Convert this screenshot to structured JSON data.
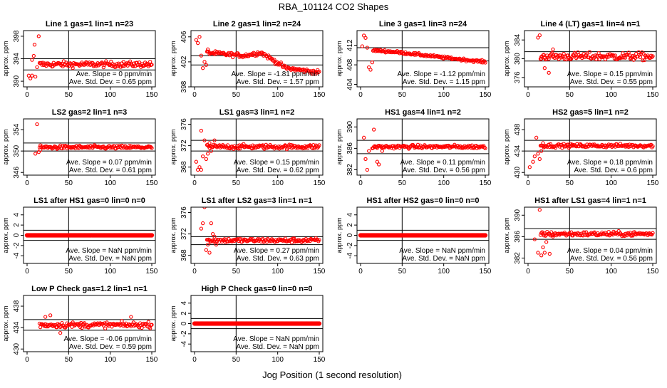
{
  "figure": {
    "title": "RBA_101124  CO2 Shapes",
    "xlabel": "Jog Position (1 second resolution)",
    "marker_color": "#ff0000"
  },
  "chart_data": [
    {
      "type": "scatter",
      "title": "Line 1 gas=1 lin=1 n=23",
      "ylabel": "approx. ppm",
      "xlim": [
        0,
        150
      ],
      "xticks": [
        0,
        50,
        100,
        150
      ],
      "ylim": [
        389,
        399
      ],
      "yticks": [
        390,
        394,
        398
      ],
      "hlines": [
        392,
        394
      ],
      "vline": 50,
      "mean": 393,
      "sd": 0.6,
      "outliers": [
        [
          2,
          391
        ],
        [
          4,
          390.5
        ],
        [
          6,
          393.8
        ],
        [
          8,
          394.5
        ],
        [
          10,
          390.8
        ],
        [
          12,
          392.5
        ],
        [
          14,
          398
        ],
        [
          6,
          391
        ],
        [
          9,
          396.5
        ]
      ],
      "slope_text": "Ave. Slope =  0  ppm/min",
      "sd_text": "Ave. Std. Dev. =  0.65  ppm"
    },
    {
      "type": "scatter",
      "title": "Line 2 gas=1 lin=2 n=24",
      "ylabel": "approx. ppm",
      "xlim": [
        0,
        150
      ],
      "xticks": [
        0,
        50,
        100,
        150
      ],
      "ylim": [
        398,
        407
      ],
      "yticks": [
        398,
        402,
        406
      ],
      "hlines": [
        403,
        401.5
      ],
      "vline": 50,
      "trend": [
        [
          12,
          403.5
        ],
        [
          60,
          403
        ],
        [
          80,
          403.5
        ],
        [
          110,
          401
        ],
        [
          150,
          400.3
        ]
      ],
      "sd": 0.4,
      "outliers": [
        [
          2,
          405.5
        ],
        [
          4,
          405
        ],
        [
          6,
          406
        ],
        [
          8,
          403
        ],
        [
          10,
          401
        ],
        [
          12,
          402
        ],
        [
          14,
          401.5
        ],
        [
          16,
          404
        ]
      ],
      "slope_text": "Ave. Slope =  -1.81  ppm/min",
      "sd_text": "Ave. Std. Dev. =  1.57  ppm"
    },
    {
      "type": "scatter",
      "title": "Line 3 gas=1 lin=3 n=24",
      "ylabel": "approx. ppm",
      "xlim": [
        0,
        150
      ],
      "xticks": [
        0,
        50,
        100,
        150
      ],
      "ylim": [
        403.5,
        415
      ],
      "yticks": [
        404,
        408,
        412
      ],
      "hlines": [
        411.5,
        408.8
      ],
      "vline": 50,
      "trend": [
        [
          15,
          411
        ],
        [
          50,
          410.5
        ],
        [
          100,
          409.5
        ],
        [
          150,
          408.6
        ]
      ],
      "sd": 0.3,
      "outliers": [
        [
          2,
          411.8
        ],
        [
          4,
          414
        ],
        [
          6,
          413.5
        ],
        [
          8,
          411.5
        ],
        [
          10,
          407.5
        ],
        [
          12,
          407
        ],
        [
          14,
          408.5
        ]
      ],
      "slope_text": "Ave. Slope =  -1.12  ppm/min",
      "sd_text": "Ave. Std. Dev. =  1.15  ppm"
    },
    {
      "type": "scatter",
      "title": "Line 4 (LT) gas=1 lin=4 n=1",
      "ylabel": "approx. ppm",
      "xlim": [
        0,
        150
      ],
      "xticks": [
        0,
        50,
        100,
        150
      ],
      "ylim": [
        374,
        386
      ],
      "yticks": [
        376,
        380,
        384
      ],
      "hlines": [
        381.5,
        379.5
      ],
      "vline": 50,
      "mean": 380.5,
      "sd": 1.0,
      "outliers": [
        [
          12,
          384.5
        ],
        [
          14,
          385
        ],
        [
          16,
          380
        ],
        [
          20,
          378
        ],
        [
          25,
          377
        ],
        [
          30,
          382
        ]
      ],
      "slope_text": "Ave. Slope =  0.15  ppm/min",
      "sd_text": "Ave. Std. Dev. =  0.55  ppm"
    },
    {
      "type": "scatter",
      "title": "LS2 gas=2 lin=1 n=3",
      "ylabel": "approx. ppm",
      "xlim": [
        0,
        150
      ],
      "xticks": [
        0,
        50,
        100,
        150
      ],
      "ylim": [
        345.5,
        356
      ],
      "yticks": [
        346,
        350,
        354
      ],
      "hlines": [
        351.5,
        350
      ],
      "vline": 50,
      "mean": 350.7,
      "sd": 0.4,
      "outliers": [
        [
          10,
          349.5
        ],
        [
          12,
          355
        ],
        [
          14,
          349.8
        ],
        [
          16,
          350.2
        ]
      ],
      "slope_text": "Ave. Slope =  0.07  ppm/min",
      "sd_text": "Ave. Std. Dev. =  0.61  ppm"
    },
    {
      "type": "scatter",
      "title": "LS1 gas=3 lin=1 n=2",
      "ylabel": "approx. ppm",
      "xlim": [
        0,
        150
      ],
      "xticks": [
        0,
        50,
        100,
        150
      ],
      "ylim": [
        366.5,
        377
      ],
      "yticks": [
        368,
        372,
        376
      ],
      "hlines": [
        373,
        371
      ],
      "vline": 50,
      "mean": 371.8,
      "sd": 0.5,
      "outliers": [
        [
          2,
          369
        ],
        [
          4,
          367.5
        ],
        [
          6,
          368
        ],
        [
          8,
          367.5
        ],
        [
          10,
          370
        ],
        [
          12,
          373
        ],
        [
          14,
          369.5
        ],
        [
          16,
          370.5
        ],
        [
          18,
          372.5
        ],
        [
          20,
          371
        ],
        [
          24,
          373
        ],
        [
          8,
          374.8
        ]
      ],
      "slope_text": "Ave. Slope =  0.15  ppm/min",
      "sd_text": "Ave. Std. Dev. =  0.62  ppm"
    },
    {
      "type": "scatter",
      "title": "HS1 gas=4 lin=1 n=2",
      "ylabel": "approx. ppm",
      "xlim": [
        0,
        150
      ],
      "xticks": [
        0,
        50,
        100,
        150
      ],
      "ylim": [
        381,
        391.5
      ],
      "yticks": [
        382,
        386,
        390
      ],
      "hlines": [
        387.5,
        385
      ],
      "vline": 50,
      "mean": 386.3,
      "sd": 0.4,
      "outliers": [
        [
          4,
          388
        ],
        [
          6,
          384
        ],
        [
          8,
          382
        ],
        [
          10,
          385.5
        ],
        [
          14,
          386
        ],
        [
          16,
          389.5
        ],
        [
          20,
          383.5
        ],
        [
          22,
          383
        ],
        [
          26,
          385.5
        ]
      ],
      "slope_text": "Ave. Slope =  0.11  ppm/min",
      "sd_text": "Ave. Std. Dev. =  0.56  ppm"
    },
    {
      "type": "scatter",
      "title": "HS2 gas=5 lin=1 n=2",
      "ylabel": "approx. ppm",
      "xlim": [
        0,
        150
      ],
      "xticks": [
        0,
        50,
        100,
        150
      ],
      "ylim": [
        429.5,
        440
      ],
      "yticks": [
        430,
        434,
        438
      ],
      "hlines": [
        436,
        434
      ],
      "vline": 50,
      "mean": 435,
      "sd": 0.4,
      "outliers": [
        [
          2,
          431
        ],
        [
          6,
          432
        ],
        [
          8,
          433
        ],
        [
          10,
          436.5
        ],
        [
          12,
          433.5
        ],
        [
          14,
          432.5
        ],
        [
          16,
          434
        ],
        [
          18,
          435.5
        ]
      ],
      "slope_text": "Ave. Slope =  0.18  ppm/min",
      "sd_text": "Ave. Std. Dev. =  0.6  ppm"
    },
    {
      "type": "scatter",
      "title": "LS1 after HS1 gas=0 lin=0 n=0",
      "ylabel": "approx. ppm",
      "xlim": [
        0,
        150
      ],
      "xticks": [
        0,
        50,
        100,
        150
      ],
      "ylim": [
        -5.5,
        5.5
      ],
      "yticks": [
        -4,
        -2,
        0,
        2,
        4
      ],
      "hlines": [
        1,
        -1
      ],
      "vline": 50,
      "mean": 0,
      "sd": 0,
      "outliers": [],
      "slope_text": "Ave. Slope =  NaN  ppm/min",
      "sd_text": "Ave. Std. Dev. =  NaN  ppm"
    },
    {
      "type": "scatter",
      "title": "LS1 after LS2 gas=3 lin=1 n=1",
      "ylabel": "approx. ppm",
      "xlim": [
        0,
        150
      ],
      "xticks": [
        0,
        50,
        100,
        150
      ],
      "ylim": [
        366.5,
        377
      ],
      "yticks": [
        368,
        372,
        376
      ],
      "hlines": [
        371.5,
        370
      ],
      "vline": 50,
      "mean": 370.8,
      "sd": 0.5,
      "outliers": [
        [
          8,
          373
        ],
        [
          10,
          374
        ],
        [
          12,
          377
        ],
        [
          14,
          369
        ],
        [
          16,
          370
        ],
        [
          18,
          368.5
        ],
        [
          20,
          374
        ],
        [
          22,
          372
        ],
        [
          24,
          371.5
        ],
        [
          26,
          370
        ]
      ],
      "slope_text": "Ave. Slope =  0.27  ppm/min",
      "sd_text": "Ave. Std. Dev. =  0.63  ppm"
    },
    {
      "type": "scatter",
      "title": "HS1 after HS2 gas=0 lin=0 n=0",
      "ylabel": "approx. ppm",
      "xlim": [
        0,
        150
      ],
      "xticks": [
        0,
        50,
        100,
        150
      ],
      "ylim": [
        -5.5,
        5.5
      ],
      "yticks": [
        -4,
        -2,
        0,
        2,
        4
      ],
      "hlines": [
        1,
        -1
      ],
      "vline": 50,
      "mean": 0,
      "sd": 0,
      "outliers": [],
      "slope_text": "Ave. Slope =  NaN  ppm/min",
      "sd_text": "Ave. Std. Dev. =  NaN  ppm"
    },
    {
      "type": "scatter",
      "title": "HS1 after LS1 gas=4 lin=1 n=1",
      "ylabel": "approx. ppm",
      "xlim": [
        0,
        150
      ],
      "xticks": [
        0,
        50,
        100,
        150
      ],
      "ylim": [
        381,
        391.5
      ],
      "yticks": [
        382,
        386,
        390
      ],
      "hlines": [
        387.5,
        385.5
      ],
      "vline": 50,
      "mean": 386.5,
      "sd": 0.5,
      "outliers": [
        [
          8,
          385.5
        ],
        [
          12,
          383
        ],
        [
          14,
          391
        ],
        [
          16,
          382.5
        ],
        [
          18,
          384
        ],
        [
          20,
          383
        ],
        [
          22,
          385
        ],
        [
          26,
          382.8
        ],
        [
          30,
          386
        ]
      ],
      "slope_text": "Ave. Slope =  0.04  ppm/min",
      "sd_text": "Ave. Std. Dev. =  0.56  ppm"
    },
    {
      "type": "scatter",
      "title": "Low P Check gas=1.2 lin=1 n=1",
      "ylabel": "approx. ppm",
      "xlim": [
        0,
        150
      ],
      "xticks": [
        0,
        50,
        100,
        150
      ],
      "ylim": [
        429.5,
        440
      ],
      "yticks": [
        430,
        434,
        438
      ],
      "hlines": [
        435.5,
        433.5
      ],
      "vline": 50,
      "mean": 434.5,
      "sd": 0.6,
      "outliers": [
        [
          22,
          436
        ],
        [
          28,
          436.3
        ],
        [
          40,
          433
        ],
        [
          125,
          436
        ]
      ],
      "slope_text": "Ave. Slope =  -0.06  ppm/min",
      "sd_text": "Ave. Std. Dev. =  0.59  ppm"
    },
    {
      "type": "scatter",
      "title": "High P Check gas=0 lin=0 n=0",
      "ylabel": "approx. ppm",
      "xlim": [
        0,
        150
      ],
      "xticks": [
        0,
        50,
        100,
        150
      ],
      "ylim": [
        -5.5,
        5.5
      ],
      "yticks": [
        -4,
        -2,
        0,
        2,
        4
      ],
      "hlines": [
        1,
        -1
      ],
      "vline": 50,
      "mean": 0,
      "sd": 0,
      "outliers": [],
      "slope_text": "Ave. Slope =  NaN  ppm/min",
      "sd_text": "Ave. Std. Dev. =  NaN  ppm"
    }
  ]
}
